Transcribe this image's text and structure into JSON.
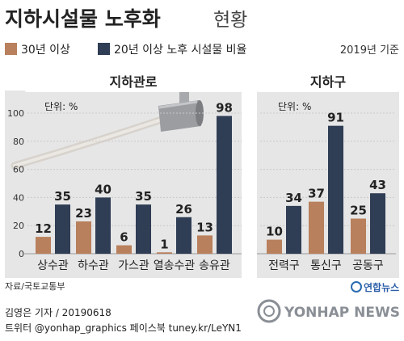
{
  "header": {
    "title_bold": "지하시설물 노후화",
    "title_light": "현황",
    "base_year": "2019년 기준"
  },
  "legend": [
    {
      "label": "30년 이상",
      "color": "#b8805c"
    },
    {
      "label": "20년 이상 노후 시설물 비율",
      "color": "#2f3d55"
    }
  ],
  "unit_label": "단위: %",
  "source": "자료/국토교통부",
  "credit": "김영은 기자 / 20190618",
  "social": "트위터 @yonhap_graphics  페이스북 tuney.kr/LeYN1",
  "brand": {
    "ko": "연합뉴스",
    "en": "YONHAP NEWS"
  },
  "colors": {
    "over30": "#b8805c",
    "over20": "#2f3d55",
    "panel_bg": "#e6e6e6",
    "header_bg": "#ffffff"
  },
  "chart_data": [
    {
      "type": "bar",
      "title": "지하관로",
      "ylabel": "단위: %",
      "ylim": [
        0,
        100
      ],
      "yticks": [
        0,
        20,
        40,
        60,
        80,
        100
      ],
      "grid": true,
      "categories": [
        "상수관",
        "하수관",
        "가스관",
        "열송수관",
        "송유관"
      ],
      "series": [
        {
          "name": "30년 이상",
          "values": [
            12,
            23,
            6,
            1,
            13
          ]
        },
        {
          "name": "20년 이상 노후 시설물 비율",
          "values": [
            35,
            40,
            35,
            26,
            98
          ]
        }
      ]
    },
    {
      "type": "bar",
      "title": "지하구",
      "ylabel": "단위: %",
      "ylim": [
        0,
        100
      ],
      "grid": true,
      "categories": [
        "전력구",
        "통신구",
        "공동구"
      ],
      "series": [
        {
          "name": "30년 이상",
          "values": [
            10,
            37,
            25
          ]
        },
        {
          "name": "20년 이상 노후 시설물 비율",
          "values": [
            34,
            91,
            43
          ]
        }
      ]
    }
  ]
}
